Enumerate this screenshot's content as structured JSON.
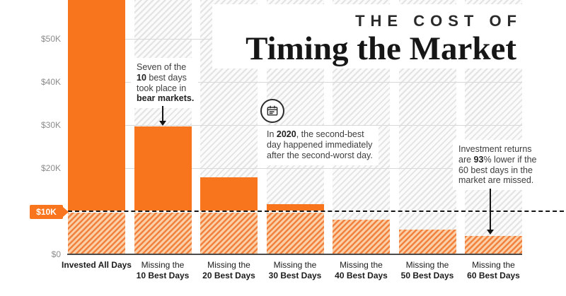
{
  "title": {
    "kicker": "THE COST OF",
    "headline": "Timing the Market"
  },
  "y_axis": {
    "ticks": [
      {
        "label": "$50K",
        "value": 50000
      },
      {
        "label": "$40K",
        "value": 40000
      },
      {
        "label": "$30K",
        "value": 30000
      },
      {
        "label": "$20K",
        "value": 20000
      },
      {
        "label": "$0",
        "value": 0
      }
    ],
    "badge": {
      "label": "$10K",
      "value": 10000
    }
  },
  "chart_data": {
    "type": "bar",
    "title": "The Cost of Timing the Market",
    "categories": [
      [
        "Invested All Days"
      ],
      [
        "Missing the",
        "10 Best Days"
      ],
      [
        "Missing the",
        "20 Best Days"
      ],
      [
        "Missing the",
        "30 Best Days"
      ],
      [
        "Missing the",
        "40 Best Days"
      ],
      [
        "Missing the",
        "50 Best Days"
      ],
      [
        "Missing the",
        "60 Best Days"
      ]
    ],
    "values": [
      64844,
      29708,
      17826,
      11701,
      8048,
      5746,
      4205
    ],
    "xlabel": "",
    "ylabel": "",
    "ylim": [
      0,
      60000
    ],
    "gridlines": [
      20000,
      30000,
      40000,
      50000
    ],
    "threshold": {
      "value": 10000,
      "label": "$10K",
      "style": "dashed"
    },
    "grid": true,
    "legend": false
  },
  "annotations": [
    {
      "lines": [
        [
          {
            "t": "Seven of the"
          }
        ],
        [
          {
            "t": "10",
            "b": true
          },
          {
            "t": " best days"
          }
        ],
        [
          {
            "t": "took place in"
          }
        ],
        [
          {
            "t": "bear markets.",
            "b": true
          }
        ]
      ]
    },
    {
      "lines": [
        [
          {
            "t": "In "
          },
          {
            "t": "2020",
            "b": true
          },
          {
            "t": ", the second-best"
          }
        ],
        [
          {
            "t": "day happened immediately"
          }
        ],
        [
          {
            "t": "after the second-worst day."
          }
        ]
      ]
    },
    {
      "lines": [
        [
          {
            "t": "Investment returns"
          }
        ],
        [
          {
            "t": "are "
          },
          {
            "t": "93",
            "b": true
          },
          {
            "t": "% lower if the"
          }
        ],
        [
          {
            "t": "60 best days in the"
          }
        ],
        [
          {
            "t": "market are missed."
          }
        ]
      ]
    }
  ],
  "colors": {
    "accent_orange": "#f9751d",
    "hatch_orange_stripe": "#f2813d",
    "hatch_orange_bg": "#fbcfa8",
    "hatch_gray_stripe": "#e3e3e3",
    "grid_line": "#d9d9d9",
    "axis_line": "#4b4b4b",
    "text_dark": "#1c1c1c",
    "text_gray": "#8c8c8c",
    "annotation_text": "#3e3e3e"
  }
}
